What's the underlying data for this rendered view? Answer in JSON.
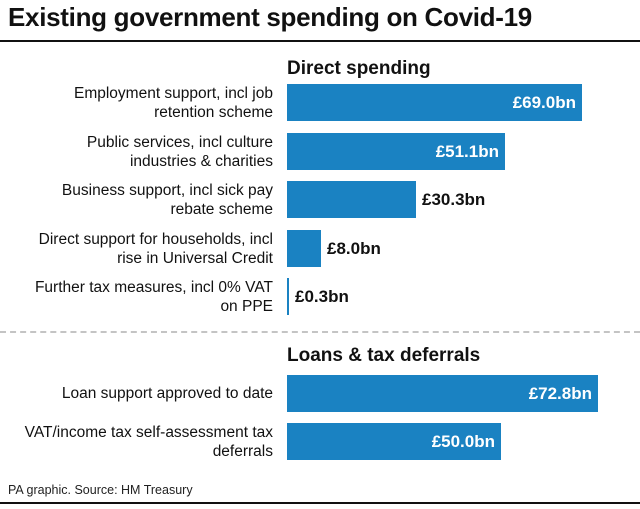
{
  "title": "Existing government spending on Covid-19",
  "source": "PA graphic. Source: HM Treasury",
  "chart_data": {
    "type": "bar",
    "orientation": "horizontal",
    "unit_prefix": "£",
    "unit_suffix": "bn",
    "groups": [
      {
        "title": "Direct spending",
        "categories": [
          "Employment support, incl job retention scheme",
          "Public services, incl culture industries & charities",
          "Business support, incl sick pay rebate scheme",
          "Direct support for households, incl rise in Universal Credit",
          "Further tax measures, incl 0% VAT on PPE"
        ],
        "value_labels": [
          "£69.0bn",
          "£51.1bn",
          "£30.3bn",
          "£8.0bn",
          "£0.3bn"
        ],
        "values": [
          69.0,
          51.1,
          30.3,
          8.0,
          0.3
        ]
      },
      {
        "title": "Loans & tax deferrals",
        "categories": [
          "Loan support approved to date",
          "VAT/income tax self-assessment tax deferrals"
        ],
        "value_labels": [
          "£72.8bn",
          "£50.0bn"
        ],
        "values": [
          72.8,
          50.0
        ]
      }
    ],
    "xlim": [
      0,
      72.8
    ],
    "bar_color": "#1a82c2"
  }
}
